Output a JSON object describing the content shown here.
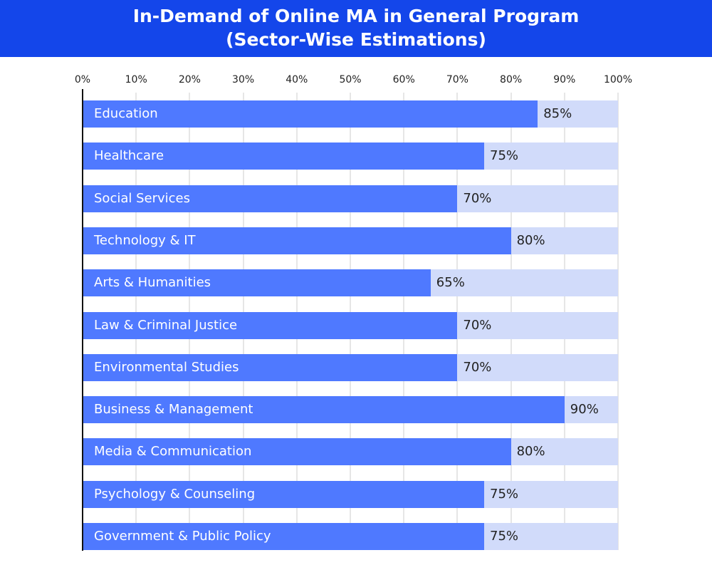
{
  "chart_data": {
    "type": "bar",
    "orientation": "horizontal",
    "title": "In-Demand of Online MA in General Program",
    "subtitle": "(Sector-Wise Estimations)",
    "categories": [
      "Education",
      "Healthcare",
      "Social Services",
      "Technology & IT",
      "Arts & Humanities",
      "Law & Criminal Justice",
      "Environmental Studies",
      "Business & Management",
      "Media & Communication",
      "Psychology & Counseling",
      "Government & Public Policy"
    ],
    "values": [
      85,
      75,
      70,
      80,
      65,
      70,
      70,
      90,
      80,
      75,
      75
    ],
    "value_labels": [
      "85%",
      "75%",
      "70%",
      "80%",
      "65%",
      "70%",
      "70%",
      "90%",
      "80%",
      "75%",
      "75%"
    ],
    "xlim": [
      0,
      100
    ],
    "xticks": [
      0,
      10,
      20,
      30,
      40,
      50,
      60,
      70,
      80,
      90,
      100
    ],
    "xtick_labels": [
      "0%",
      "10%",
      "20%",
      "30%",
      "40%",
      "50%",
      "60%",
      "70%",
      "80%",
      "90%",
      "100%"
    ],
    "xaxis_position": "top",
    "grid": true,
    "colors": {
      "bar": "#4f79ff",
      "track": "#d1dbfa",
      "title_bg": "#1446ea"
    }
  }
}
